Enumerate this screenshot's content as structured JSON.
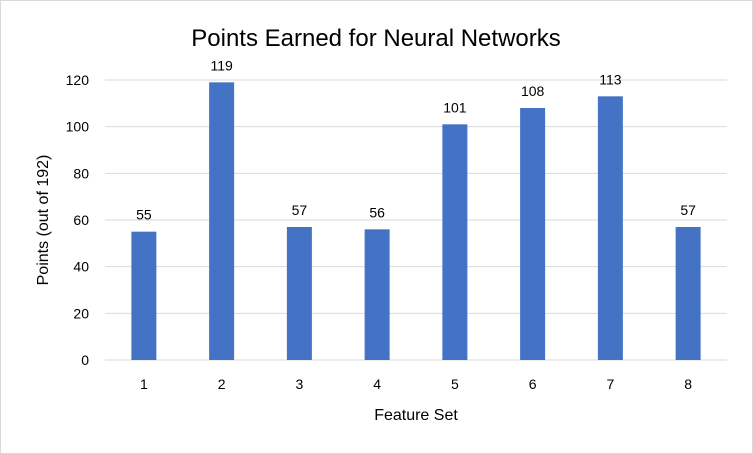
{
  "chart_data": {
    "type": "bar",
    "title": "Points Earned for Neural Networks",
    "xlabel": "Feature Set",
    "ylabel": "Points (out of 192)",
    "categories": [
      "1",
      "2",
      "3",
      "4",
      "5",
      "6",
      "7",
      "8"
    ],
    "values": [
      55,
      119,
      57,
      56,
      101,
      108,
      113,
      57
    ],
    "ylim": [
      0,
      120
    ],
    "yticks": [
      "0",
      "20",
      "40",
      "60",
      "80",
      "100",
      "120"
    ],
    "grid": true,
    "legend": "none",
    "bar_color": "#4472C4",
    "grid_color": "#d9d9d9"
  }
}
